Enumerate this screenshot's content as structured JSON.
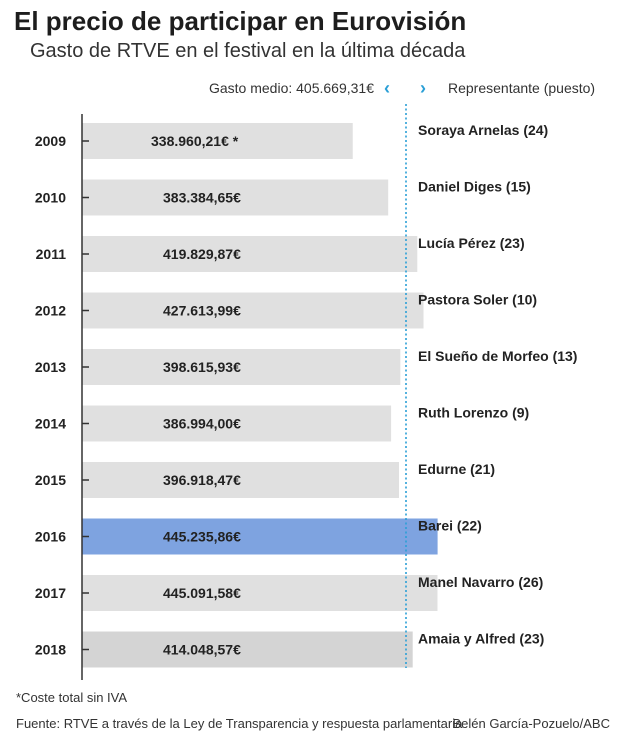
{
  "chart_data": {
    "type": "bar",
    "orientation": "horizontal",
    "title": "El precio de participar en Eurovisión",
    "subtitle": "Gasto de RTVE en el festival en la última década",
    "categories": [
      "2009",
      "2010",
      "2011",
      "2012",
      "2013",
      "2014",
      "2015",
      "2016",
      "2017",
      "2018"
    ],
    "values": [
      338960.21,
      383384.65,
      419829.87,
      427613.99,
      398615.93,
      386994.0,
      396918.47,
      445235.86,
      445091.58,
      414048.57
    ],
    "value_labels": [
      "338.960,21€ *",
      "383.384,65€",
      "419.829,87€",
      "427.613,99€",
      "398.615,93€",
      "386.994,00€",
      "396.918,47€",
      "445.235,86€",
      "445.091,58€",
      "414.048,57€"
    ],
    "representatives": [
      "Soraya Arnelas (24)",
      "Daniel Diges (15)",
      "Lucía Pérez (23)",
      "Pastora Soler (10)",
      "El Sueño de Morfeo (13)",
      "Ruth Lorenzo (9)",
      "Edurne (21)",
      "Barei (22)",
      "Manel Navarro (26)",
      "Amaia y Alfred (23)"
    ],
    "highlight": "2016",
    "average_value": 405669.31,
    "average_label": "Gasto medio: 405.669,31€",
    "representative_header": "Representante (puesto)",
    "colors": {
      "bar": "#e0e0e0",
      "bar_last": "#d4d4d4",
      "highlight": "#7ea3e0",
      "average_line": "#2a9fd6",
      "axis": "#333333"
    }
  },
  "notes": {
    "footnote": "*Coste total sin IVA",
    "source": "Fuente: RTVE a través de la Ley de Transparencia y respuesta parlamentaria",
    "author": "Belén García-Pozuelo/ABC"
  },
  "icons": {
    "chevron_left": "‹",
    "chevron_right": "›"
  }
}
